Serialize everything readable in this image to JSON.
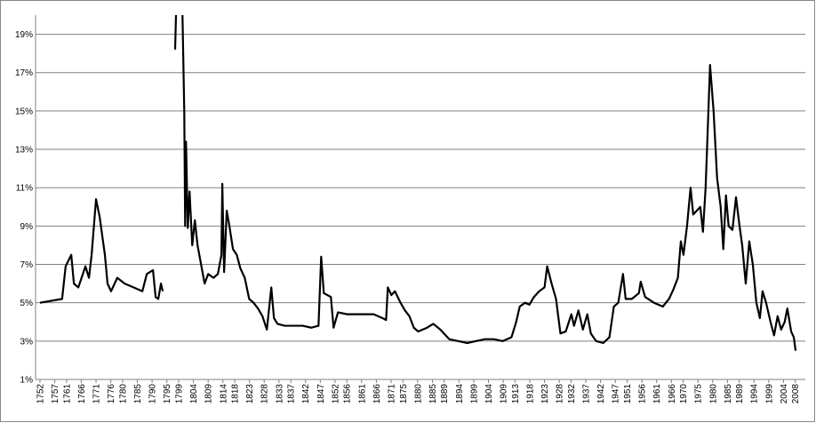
{
  "chart_data": {
    "type": "line",
    "color": "#000000",
    "grid": true,
    "xlim": [
      1750.5,
      2011.4
    ],
    "ylim": [
      1,
      20
    ],
    "yticks": [
      {
        "value": 1,
        "label": "1%"
      },
      {
        "value": 3,
        "label": "3%"
      },
      {
        "value": 5,
        "label": "5%"
      },
      {
        "value": 7,
        "label": "7%"
      },
      {
        "value": 9,
        "label": "9%"
      },
      {
        "value": 11,
        "label": "11%"
      },
      {
        "value": 13,
        "label": "13%"
      },
      {
        "value": 15,
        "label": "15%"
      },
      {
        "value": 17,
        "label": "17%"
      },
      {
        "value": 19,
        "label": "19%"
      }
    ],
    "xticks": [
      1752,
      1757,
      1761,
      1766,
      1771,
      1776,
      1780,
      1785,
      1790,
      1795,
      1799,
      1804,
      1809,
      1814,
      1818,
      1823,
      1828,
      1833,
      1837,
      1842,
      1847,
      1852,
      1856,
      1861,
      1866,
      1871,
      1875,
      1880,
      1885,
      1889,
      1894,
      1899,
      1904,
      1909,
      1913,
      1918,
      1923,
      1928,
      1932,
      1937,
      1942,
      1947,
      1951,
      1956,
      1961,
      1966,
      1970,
      1975,
      1980,
      1985,
      1989,
      1994,
      1999,
      2004,
      2008
    ],
    "x": [
      1752.0,
      1759.5,
      1760.7,
      1762.6,
      1763.5,
      1765.0,
      1767.4,
      1768.6,
      1769.5,
      1771.0,
      1772.2,
      1774.0,
      1774.9,
      1776.1,
      1778.2,
      1780.7,
      1783.7,
      1786.7,
      1788.2,
      1790.3,
      1791.2,
      1792.1,
      1793.0,
      1793.6,
      1795.5,
      1797.8,
      1798.1,
      1799.0,
      1800.3,
      1800.9,
      1801.2,
      1801.5,
      1802.1,
      1802.7,
      1803.6,
      1804.5,
      1805.4,
      1806.6,
      1807.8,
      1809.0,
      1810.8,
      1812.3,
      1813.5,
      1813.8,
      1814.4,
      1815.3,
      1816.2,
      1817.4,
      1818.7,
      1819.9,
      1821.4,
      1822.9,
      1824.4,
      1825.9,
      1827.4,
      1828.9,
      1830.4,
      1831.3,
      1832.5,
      1834.9,
      1838.0,
      1841.0,
      1844.0,
      1846.4,
      1847.3,
      1848.2,
      1850.6,
      1851.5,
      1853.0,
      1856.1,
      1859.1,
      1862.1,
      1865.1,
      1868.1,
      1869.3,
      1869.9,
      1871.1,
      1872.3,
      1874.2,
      1875.7,
      1877.2,
      1878.7,
      1880.2,
      1883.2,
      1885.3,
      1887.7,
      1890.7,
      1893.7,
      1896.8,
      1899.8,
      1902.8,
      1905.8,
      1908.8,
      1911.8,
      1913.4,
      1914.6,
      1916.4,
      1917.9,
      1919.4,
      1921.2,
      1923.0,
      1923.9,
      1925.4,
      1926.9,
      1928.4,
      1930.2,
      1932.1,
      1933.0,
      1934.5,
      1936.0,
      1937.5,
      1938.7,
      1940.5,
      1942.9,
      1945.0,
      1946.5,
      1948.0,
      1949.6,
      1950.5,
      1952.6,
      1955.0,
      1955.6,
      1957.1,
      1960.1,
      1963.1,
      1965.2,
      1966.7,
      1968.2,
      1969.2,
      1970.1,
      1971.3,
      1972.5,
      1973.4,
      1974.6,
      1975.8,
      1976.7,
      1977.6,
      1978.2,
      1979.1,
      1980.3,
      1981.5,
      1982.7,
      1983.6,
      1984.5,
      1985.4,
      1986.7,
      1987.9,
      1989.1,
      1990.0,
      1991.2,
      1992.4,
      1993.6,
      1994.8,
      1996.0,
      1996.9,
      1998.1,
      1999.6,
      2000.8,
      2002.0,
      2003.2,
      2004.4,
      2005.3,
      2006.6,
      2007.5,
      2008.1
    ],
    "values": [
      5.0,
      5.2,
      6.9,
      7.5,
      6.0,
      5.8,
      6.9,
      6.3,
      7.5,
      10.4,
      9.5,
      7.5,
      6.0,
      5.6,
      6.3,
      6.0,
      5.8,
      5.6,
      6.5,
      6.7,
      5.3,
      5.2,
      6.0,
      5.6,
      null,
      18.2,
      20,
      null,
      20,
      15,
      9,
      13.4,
      8.9,
      10.8,
      8.0,
      9.3,
      8.0,
      7.0,
      6.0,
      6.5,
      6.3,
      6.5,
      7.5,
      11.2,
      6.6,
      9.8,
      9.0,
      7.8,
      7.5,
      6.8,
      6.3,
      5.2,
      5.0,
      4.7,
      4.3,
      3.6,
      5.8,
      4.2,
      3.9,
      3.8,
      3.8,
      3.8,
      3.7,
      3.8,
      7.4,
      5.5,
      5.3,
      3.7,
      4.5,
      4.4,
      4.4,
      4.4,
      4.4,
      4.2,
      4.1,
      5.8,
      5.4,
      5.6,
      5.0,
      4.6,
      4.3,
      3.7,
      3.5,
      3.7,
      3.9,
      3.6,
      3.1,
      3.0,
      2.9,
      3.0,
      3.1,
      3.1,
      3.0,
      3.2,
      4.0,
      4.8,
      5.0,
      4.9,
      5.3,
      5.6,
      5.8,
      6.9,
      6.0,
      5.2,
      3.4,
      3.5,
      4.4,
      3.8,
      4.6,
      3.6,
      4.4,
      3.4,
      3.0,
      2.9,
      3.2,
      4.8,
      5.0,
      6.5,
      5.2,
      5.2,
      5.5,
      6.1,
      5.3,
      5.0,
      4.8,
      5.2,
      5.7,
      6.3,
      8.2,
      7.5,
      9.0,
      11.0,
      9.6,
      9.8,
      10.0,
      8.7,
      11.0,
      13.5,
      17.4,
      15.0,
      11.5,
      10.0,
      7.8,
      10.6,
      9.0,
      8.8,
      10.5,
      9.0,
      8.0,
      6.0,
      8.2,
      7.0,
      5.0,
      4.2,
      5.6,
      5.0,
      4.0,
      3.3,
      4.3,
      3.6,
      4.0,
      4.7,
      3.5,
      3.2,
      2.5
    ]
  }
}
